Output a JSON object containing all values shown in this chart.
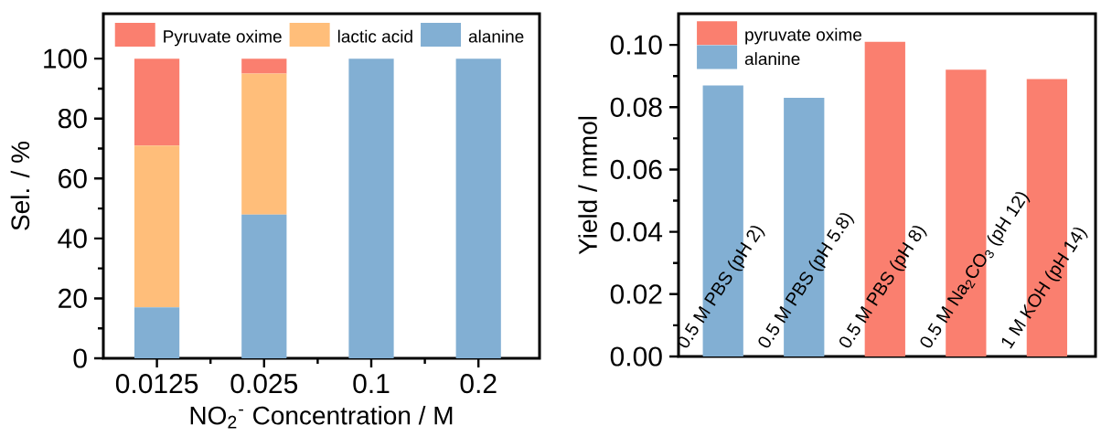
{
  "chart_data": [
    {
      "type": "bar",
      "stacked": true,
      "categories": [
        "0.0125",
        "0.025",
        "0.1",
        "0.2"
      ],
      "xlabel": "NO$_{2}$$^{-}$ Concentration / M",
      "ylabel": "Sel. / %",
      "ylim": [
        0,
        115
      ],
      "yticks": [
        0,
        20,
        40,
        60,
        80,
        100
      ],
      "legend": "top",
      "series": [
        {
          "name": "alanine",
          "color": "#82afd3",
          "values": [
            17,
            48,
            100,
            100
          ]
        },
        {
          "name": "lactic acid",
          "color": "#ffbe7a",
          "values": [
            54,
            47,
            0,
            0
          ]
        },
        {
          "name": "Pyruvate oxime",
          "color": "#fa7f6f",
          "values": [
            29,
            5,
            0,
            0
          ]
        }
      ]
    },
    {
      "type": "bar",
      "categories": [
        "0.5 M PBS (pH 2)",
        "0.5 M PBS (pH 5.8)",
        "0.5 M PBS (pH 8)",
        "0.5 M Na$_{2}$CO$_{3}$ (pH 12)",
        "1 M KOH (pH 14)"
      ],
      "ylabel": "Yield / mmol",
      "ylim": [
        0,
        0.11
      ],
      "yticks": [
        {
          "value": 0,
          "label": "0.00"
        },
        {
          "value": 0.02,
          "label": "0.02"
        },
        {
          "value": 0.04,
          "label": "0.04"
        },
        {
          "value": 0.06,
          "label": "0.06"
        },
        {
          "value": 0.08,
          "label": "0.08"
        },
        {
          "value": 0.1,
          "label": "0.10"
        }
      ],
      "legend": "top left",
      "series": [
        {
          "name": "pyruvate oxime",
          "color": "#fa7f6f",
          "values": [
            null,
            null,
            0.101,
            0.092,
            0.089
          ]
        },
        {
          "name": "alanine",
          "color": "#82afd3",
          "values": [
            0.087,
            0.083,
            null,
            null,
            null
          ]
        }
      ]
    }
  ]
}
